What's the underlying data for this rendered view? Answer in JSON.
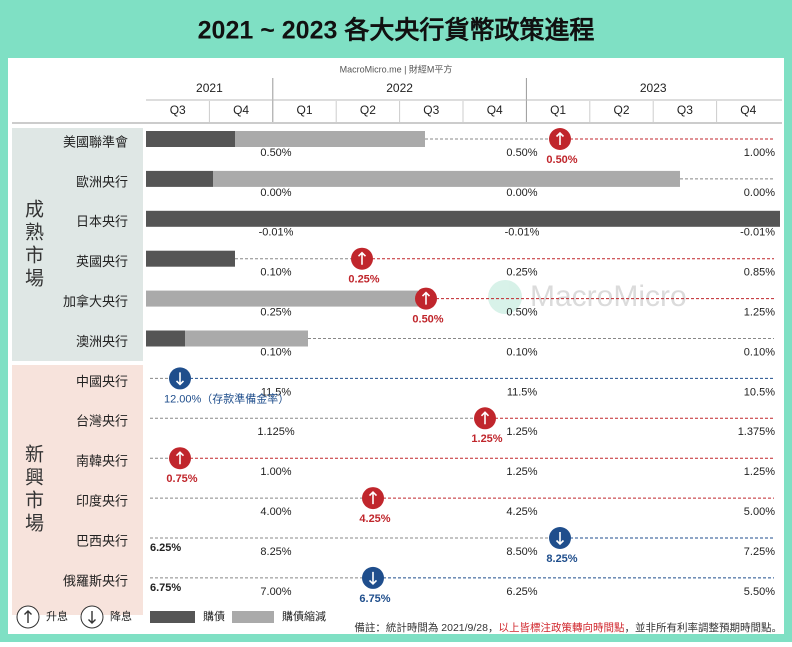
{
  "title": "2021 ~ 2023 各大央行貨幣政策進程",
  "source": "MacroMicro.me | 財經M平方",
  "years": [
    "2021",
    "2022",
    "2023"
  ],
  "quarters": [
    "Q3",
    "Q4",
    "Q1",
    "Q2",
    "Q3",
    "Q4",
    "Q1",
    "Q2",
    "Q3",
    "Q4"
  ],
  "groups": [
    "成熟市場",
    "新興市場"
  ],
  "rows": [
    {
      "name": "美國聯準會",
      "rates": [
        "0.50%",
        "0.50%",
        "1.00%"
      ],
      "event": {
        "direction": "up",
        "label": "0.50%"
      }
    },
    {
      "name": "歐洲央行",
      "rates": [
        "0.00%",
        "0.00%",
        "0.00%"
      ]
    },
    {
      "name": "日本央行",
      "rates": [
        "-0.01%",
        "-0.01%",
        "-0.01%"
      ]
    },
    {
      "name": "英國央行",
      "rates": [
        "0.10%",
        "0.25%",
        "0.85%"
      ],
      "event": {
        "direction": "up",
        "label": "0.25%"
      }
    },
    {
      "name": "加拿大央行",
      "rates": [
        "0.25%",
        "0.50%",
        "1.25%"
      ],
      "event": {
        "direction": "up",
        "label": "0.50%"
      }
    },
    {
      "name": "澳洲央行",
      "rates": [
        "0.10%",
        "0.10%",
        "0.10%"
      ]
    },
    {
      "name": "中國央行",
      "rates": [
        "11.5%",
        "11.5%",
        "10.5%"
      ],
      "event": {
        "direction": "down",
        "label": "12.00%（存款準備金率）"
      }
    },
    {
      "name": "台灣央行",
      "rates": [
        "1.125%",
        "1.25%",
        "1.375%"
      ],
      "event": {
        "direction": "up",
        "label": "1.25%"
      }
    },
    {
      "name": "南韓央行",
      "rates": [
        "1.00%",
        "1.25%",
        "1.25%"
      ],
      "event": {
        "direction": "up",
        "label": "0.75%"
      }
    },
    {
      "name": "印度央行",
      "rates": [
        "4.00%",
        "4.25%",
        "5.00%"
      ],
      "event": {
        "direction": "up",
        "label": "4.25%"
      }
    },
    {
      "name": "巴西央行",
      "start_rate": "6.25%",
      "rates": [
        "8.25%",
        "8.50%",
        "7.25%"
      ],
      "event": {
        "direction": "down",
        "label": "8.25%"
      }
    },
    {
      "name": "俄羅斯央行",
      "start_rate": "6.75%",
      "rates": [
        "7.00%",
        "6.25%",
        "5.50%"
      ],
      "event": {
        "direction": "down",
        "label": "6.75%"
      }
    }
  ],
  "legend": {
    "hike": "升息",
    "cut": "降息",
    "qe": "購債",
    "taper": "購債縮減"
  },
  "note": [
    "備註：統計時間為 2021/9/28，",
    "以上皆標注政策轉向時間點",
    "，並非所有利率調整預期時間點。"
  ],
  "watermark": "MacroMicro"
}
